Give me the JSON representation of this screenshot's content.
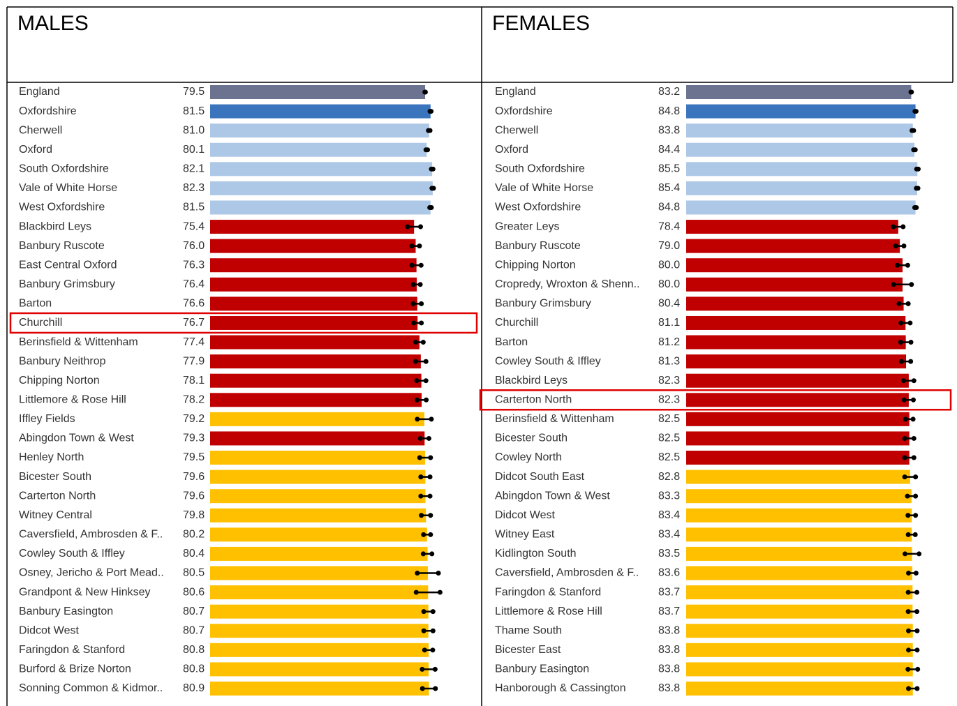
{
  "chart_data": [
    {
      "type": "bar",
      "title": "MALES",
      "highlight": 12,
      "xlim": [
        0,
        88
      ],
      "categories": [
        "England",
        "Oxfordshire",
        "Cherwell",
        "Oxford",
        "South Oxfordshire",
        "Vale of White Horse",
        "West Oxfordshire",
        "Blackbird Leys",
        "Banbury Ruscote",
        "East Central Oxford",
        "Banbury Grimsbury",
        "Barton",
        "Churchill",
        "Berinsfield & Wittenham",
        "Banbury Neithrop",
        "Chipping Norton",
        "Littlemore & Rose Hill",
        "Iffley Fields",
        "Abingdon Town & West",
        "Henley North",
        "Bicester South",
        "Carterton North",
        "Witney Central",
        "Caversfield, Ambrosden & F..",
        "Cowley South & Iffley",
        "Osney, Jericho & Port Mead..",
        "Grandpont & New Hinksey",
        "Banbury Easington",
        "Didcot West",
        "Faringdon & Stanford",
        "Burford & Brize Norton",
        "Sonning Common & Kidmor.."
      ],
      "values": [
        79.5,
        81.5,
        81,
        80.1,
        82.1,
        82.3,
        81.5,
        75.4,
        76,
        76.3,
        76.4,
        76.6,
        76.7,
        77.4,
        77.9,
        78.1,
        78.2,
        79.2,
        79.3,
        79.5,
        79.6,
        79.6,
        79.8,
        80.2,
        80.4,
        80.5,
        80.6,
        80.7,
        80.7,
        80.8,
        80.8,
        80.9
      ],
      "value_labels": [
        "79.5",
        "81.5",
        "81.0",
        "80.1",
        "82.1",
        "82.3",
        "81.5",
        "75.4",
        "76.0",
        "76.3",
        "76.4",
        "76.6",
        "76.7",
        "77.4",
        "77.9",
        "78.1",
        "78.2",
        "79.2",
        "79.3",
        "79.5",
        "79.6",
        "79.6",
        "79.8",
        "80.2",
        "80.4",
        "80.5",
        "80.6",
        "80.7",
        "80.7",
        "80.8",
        "80.8",
        "80.9"
      ],
      "errors": [
        0.1,
        0.2,
        0.3,
        0.3,
        0.3,
        0.3,
        0.3,
        2.4,
        1.4,
        1.7,
        1.3,
        1.5,
        1.4,
        1.4,
        1.9,
        1.7,
        1.7,
        2.6,
        1.6,
        2.0,
        1.7,
        1.7,
        1.7,
        1.3,
        1.6,
        3.9,
        4.4,
        1.7,
        1.7,
        1.5,
        2.4,
        2.4
      ],
      "colors": [
        "#6b7390",
        "#3a74bc",
        "#adc8e6",
        "#adc8e6",
        "#adc8e6",
        "#adc8e6",
        "#adc8e6",
        "#c00000",
        "#c00000",
        "#c00000",
        "#c00000",
        "#c00000",
        "#c00000",
        "#c00000",
        "#c00000",
        "#c00000",
        "#c00000",
        "#ffc000",
        "#c00000",
        "#ffc000",
        "#ffc000",
        "#ffc000",
        "#ffc000",
        "#ffc000",
        "#ffc000",
        "#ffc000",
        "#ffc000",
        "#ffc000",
        "#ffc000",
        "#ffc000",
        "#ffc000",
        "#ffc000"
      ]
    },
    {
      "type": "bar",
      "title": "FEMALES",
      "highlight": 16,
      "xlim": [
        0,
        88
      ],
      "categories": [
        "England",
        "Oxfordshire",
        "Cherwell",
        "Oxford",
        "South Oxfordshire",
        "Vale of White Horse",
        "West Oxfordshire",
        "Greater Leys",
        "Banbury Ruscote",
        "Chipping Norton",
        "Cropredy, Wroxton & Shenn..",
        "Banbury Grimsbury",
        "Churchill",
        "Barton",
        "Cowley South & Iffley",
        "Blackbird Leys",
        "Carterton North",
        "Berinsfield & Wittenham",
        "Bicester South",
        "Cowley North",
        "Didcot South East",
        "Abingdon Town & West",
        "Didcot West",
        "Witney East",
        "Kidlington South",
        "Caversfield, Ambrosden & F..",
        "Faringdon & Stanford",
        "Littlemore & Rose Hill",
        "Thame South",
        "Bicester East",
        "Banbury Easington",
        "Hanborough & Cassington"
      ],
      "values": [
        83.2,
        84.8,
        83.8,
        84.4,
        85.5,
        85.4,
        84.8,
        78.4,
        79,
        80,
        80,
        80.4,
        81.1,
        81.2,
        81.3,
        82.3,
        82.3,
        82.5,
        82.5,
        82.5,
        82.8,
        83.3,
        83.4,
        83.4,
        83.5,
        83.6,
        83.7,
        83.7,
        83.8,
        83.8,
        83.8,
        83.8
      ],
      "value_labels": [
        "83.2",
        "84.8",
        "83.8",
        "84.4",
        "85.5",
        "85.4",
        "84.8",
        "78.4",
        "79.0",
        "80.0",
        "80.0",
        "80.4",
        "81.1",
        "81.2",
        "81.3",
        "82.3",
        "82.3",
        "82.5",
        "82.5",
        "82.5",
        "82.8",
        "83.3",
        "83.4",
        "83.4",
        "83.5",
        "83.6",
        "83.7",
        "83.7",
        "83.8",
        "83.8",
        "83.8",
        "83.8"
      ],
      "errors": [
        0.1,
        0.2,
        0.3,
        0.3,
        0.3,
        0.3,
        0.3,
        1.8,
        1.5,
        1.9,
        3.3,
        1.7,
        1.7,
        1.9,
        1.7,
        1.9,
        1.7,
        1.4,
        1.7,
        1.7,
        2.0,
        1.5,
        1.4,
        1.3,
        2.6,
        1.4,
        1.6,
        1.6,
        1.6,
        1.6,
        1.8,
        1.6
      ],
      "colors": [
        "#6b7390",
        "#3a74bc",
        "#adc8e6",
        "#adc8e6",
        "#adc8e6",
        "#adc8e6",
        "#adc8e6",
        "#c00000",
        "#c00000",
        "#c00000",
        "#c00000",
        "#c00000",
        "#c00000",
        "#c00000",
        "#c00000",
        "#c00000",
        "#c00000",
        "#c00000",
        "#c00000",
        "#c00000",
        "#ffc000",
        "#ffc000",
        "#ffc000",
        "#ffc000",
        "#ffc000",
        "#ffc000",
        "#ffc000",
        "#ffc000",
        "#ffc000",
        "#ffc000",
        "#ffc000",
        "#ffc000"
      ]
    }
  ]
}
